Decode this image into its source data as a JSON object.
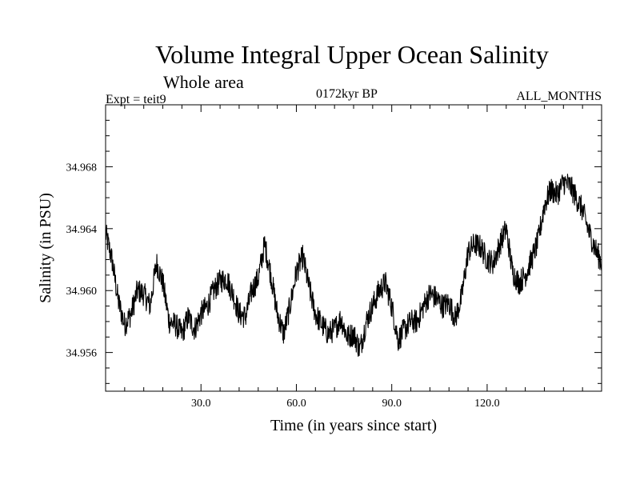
{
  "header": {
    "title": "Volume Integral Upper Ocean Salinity",
    "subtitle": "Whole area",
    "experiment": "Expt = teit9",
    "period": "0172kyr BP",
    "months": "ALL_MONTHS"
  },
  "chart_data": {
    "type": "line",
    "title": "Volume Integral Upper Ocean Salinity",
    "xlabel": "Time (in years since start)",
    "ylabel": "Salinity (in PSU)",
    "xlim": [
      0,
      156
    ],
    "ylim": [
      34.9535,
      34.972
    ],
    "xticks": [
      30,
      60,
      90,
      120
    ],
    "xtick_labels": [
      "30.0",
      "60.0",
      "90.0",
      "120.0"
    ],
    "yticks": [
      34.956,
      34.96,
      34.964,
      34.968
    ],
    "ytick_labels": [
      "34.956",
      "34.960",
      "34.964",
      "34.968"
    ],
    "grid": false,
    "color": "#000000",
    "series": [
      {
        "name": "salinity",
        "x": [
          0,
          2,
          4,
          6,
          8,
          10,
          12,
          14,
          16,
          18,
          20,
          22,
          24,
          26,
          28,
          30,
          32,
          34,
          36,
          38,
          40,
          42,
          44,
          46,
          48,
          50,
          52,
          54,
          56,
          58,
          60,
          62,
          64,
          66,
          68,
          70,
          72,
          74,
          76,
          78,
          80,
          82,
          84,
          86,
          88,
          90,
          92,
          94,
          96,
          98,
          100,
          102,
          104,
          106,
          108,
          110,
          112,
          114,
          116,
          118,
          120,
          122,
          124,
          126,
          128,
          130,
          132,
          134,
          136,
          138,
          140,
          142,
          144,
          146,
          148,
          150,
          152,
          154,
          156
        ],
        "y": [
          34.9637,
          34.962,
          34.9593,
          34.9578,
          34.9585,
          34.96,
          34.9598,
          34.959,
          34.9618,
          34.9605,
          34.958,
          34.9578,
          34.9572,
          34.9583,
          34.9575,
          34.9585,
          34.959,
          34.96,
          34.9606,
          34.9608,
          34.9598,
          34.9585,
          34.9583,
          34.96,
          34.9608,
          34.963,
          34.961,
          34.9585,
          34.9572,
          34.959,
          34.9612,
          34.9622,
          34.9602,
          34.9585,
          34.9578,
          34.9572,
          34.9575,
          34.9582,
          34.957,
          34.9572,
          34.9562,
          34.958,
          34.959,
          34.96,
          34.9605,
          34.959,
          34.9568,
          34.9575,
          34.958,
          34.958,
          34.959,
          34.9598,
          34.9595,
          34.959,
          34.9592,
          34.9582,
          34.9596,
          34.9625,
          34.963,
          34.9628,
          34.962,
          34.9618,
          34.963,
          34.964,
          34.9612,
          34.9605,
          34.961,
          34.962,
          34.9632,
          34.9655,
          34.9665,
          34.9662,
          34.967,
          34.9668,
          34.966,
          34.9652,
          34.9638,
          34.9627,
          34.9618
        ]
      }
    ]
  }
}
